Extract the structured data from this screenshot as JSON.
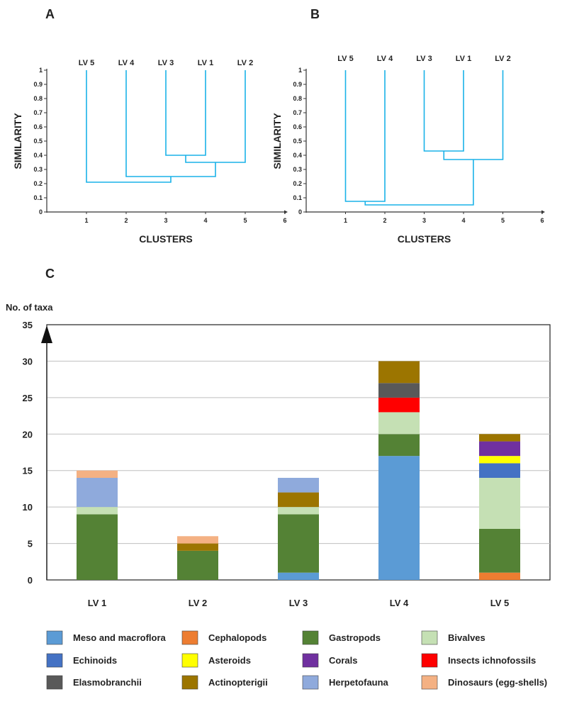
{
  "panels": {
    "a": "A",
    "b": "B",
    "c": "C"
  },
  "colors": {
    "dendrogram_line": "#1ab2e8",
    "Meso and macroflora": "#5b9bd5",
    "Cephalopods": "#ed7d31",
    "Gastropods": "#548235",
    "Bivalves": "#c5e0b4",
    "Echinoids": "#4472c4",
    "Asteroids": "#ffff00",
    "Corals": "#7030a0",
    "Insects ichnofossils": "#ff0000",
    "Elasmobranchii": "#595959",
    "Actinopterigii": "#9c7500",
    "Herpetofauna": "#8faadc",
    "Dinosaurs (egg-shells)": "#f4b183"
  },
  "chart_data": [
    {
      "type": "dendrogram",
      "panel": "A",
      "ylabel": "SIMILARITY",
      "xlabel": "CLUSTERS",
      "ylim": [
        0,
        1
      ],
      "yticks": [
        "0",
        "0.1",
        "0.2",
        "0.3",
        "0.4",
        "0.5",
        "0.6",
        "0.7",
        "0.8",
        "0.9",
        "1"
      ],
      "xlim": [
        0,
        6
      ],
      "xticks": [
        "1",
        "2",
        "3",
        "4",
        "5",
        "6"
      ],
      "leaves": [
        "LV 5",
        "LV 4",
        "LV 3",
        "LV 1",
        "LV 2"
      ],
      "merges": [
        {
          "left": 3,
          "right": 4,
          "height": 0.4
        },
        {
          "left": 3.5,
          "right": 5,
          "height": 0.35
        },
        {
          "left": 2,
          "right": 4.25,
          "height": 0.25
        },
        {
          "left": 1,
          "right": 3.125,
          "height": 0.21
        }
      ]
    },
    {
      "type": "dendrogram",
      "panel": "B",
      "ylabel": "SIMILARITY",
      "xlabel": "CLUSTERS",
      "ylim": [
        0,
        1
      ],
      "yticks": [
        "0",
        "0.1",
        "0.2",
        "0.3",
        "0.4",
        "0.5",
        "0.6",
        "0.7",
        "0.8",
        "0.9",
        "1"
      ],
      "xlim": [
        0,
        6
      ],
      "xticks": [
        "1",
        "2",
        "3",
        "4",
        "5",
        "6"
      ],
      "leaves": [
        "LV 5",
        "LV 4",
        "LV 3",
        "LV 1",
        "LV 2"
      ],
      "merges": [
        {
          "left": 3,
          "right": 4,
          "height": 0.43
        },
        {
          "left": 3.5,
          "right": 5,
          "height": 0.37
        },
        {
          "left": 1,
          "right": 2,
          "height": 0.075
        },
        {
          "left": 1.5,
          "right": 4.25,
          "height": 0.05
        }
      ]
    },
    {
      "type": "bar",
      "stacked": true,
      "panel": "C",
      "title": "No. of taxa",
      "ylim": [
        0,
        35
      ],
      "yticks": [
        "0",
        "5",
        "10",
        "15",
        "20",
        "25",
        "30",
        "35"
      ],
      "categories": [
        "LV 1",
        "LV 2",
        "LV 3",
        "LV 4",
        "LV 5"
      ],
      "series": [
        {
          "name": "Cephalopods",
          "values": [
            0,
            0,
            0,
            0,
            1
          ]
        },
        {
          "name": "Meso and macroflora",
          "values": [
            0,
            0,
            1,
            17,
            0
          ]
        },
        {
          "name": "Gastropods",
          "values": [
            9,
            4,
            8,
            3,
            6
          ]
        },
        {
          "name": "Bivalves",
          "values": [
            1,
            0,
            1,
            3,
            7
          ]
        },
        {
          "name": "Echinoids",
          "values": [
            0,
            0,
            0,
            0,
            2
          ]
        },
        {
          "name": "Asteroids",
          "values": [
            0,
            0,
            0,
            0,
            1
          ]
        },
        {
          "name": "Insects ichnofossils",
          "values": [
            0,
            0,
            0,
            2,
            0
          ]
        },
        {
          "name": "Corals",
          "values": [
            0,
            0,
            0,
            0,
            2
          ]
        },
        {
          "name": "Elasmobranchii",
          "values": [
            0,
            0,
            0,
            2,
            0
          ]
        },
        {
          "name": "Actinopterigii",
          "values": [
            0,
            1,
            2,
            3,
            1
          ]
        },
        {
          "name": "Herpetofauna",
          "values": [
            4,
            0,
            2,
            0,
            0
          ]
        },
        {
          "name": "Dinosaurs (egg-shells)",
          "values": [
            1,
            1,
            0,
            0,
            0
          ]
        }
      ],
      "legend": [
        "Meso and macroflora",
        "Cephalopods",
        "Gastropods",
        "Bivalves",
        "Echinoids",
        "Asteroids",
        "Corals",
        "Insects ichnofossils",
        "Elasmobranchii",
        "Actinopterigii",
        "Herpetofauna",
        "Dinosaurs (egg-shells)"
      ]
    }
  ]
}
